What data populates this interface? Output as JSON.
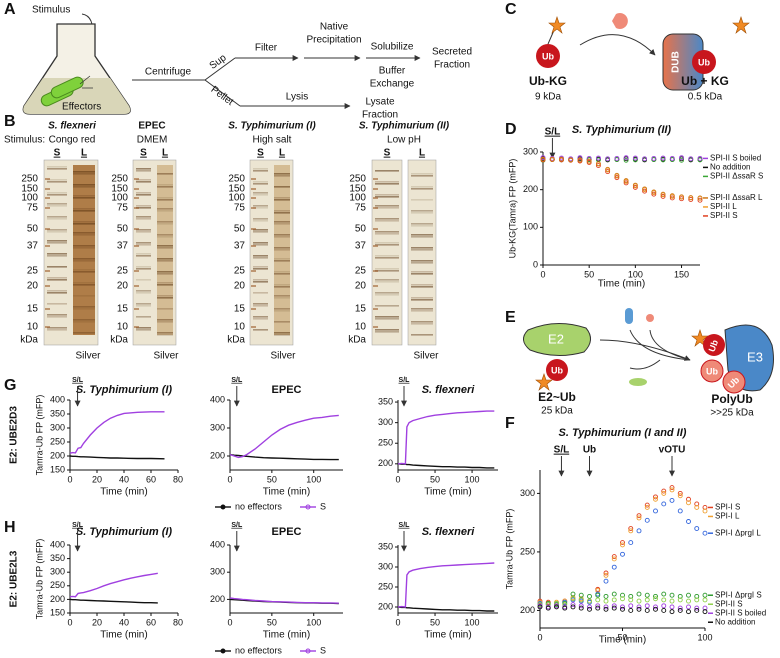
{
  "panel_labels": {
    "d": "D",
    "f": "F",
    "g": "G",
    "h": "H"
  },
  "panel_a": {
    "label": "A",
    "stimulus": "Stimulus",
    "effectors": "Effectors",
    "centrifuge": "Centrifuge",
    "sup": "Sup",
    "pellet": "Pellet",
    "filter": "Filter",
    "native_precipitation": [
      "Native",
      "Precipitation"
    ],
    "solubilize": "Solubilize",
    "buffer_exchange": [
      "Buffer",
      "Exchange"
    ],
    "secreted_fraction": [
      "Secreted",
      "Fraction"
    ],
    "lysis": "Lysis",
    "lysate_fraction": [
      "Lysate",
      "Fraction"
    ]
  },
  "panel_b": {
    "label": "B",
    "stimulus_label": "Stimulus:",
    "gels": [
      {
        "organism": "S. flexneri",
        "stimulus": "Congo red",
        "lanes": [
          "S",
          "L"
        ],
        "markers": [
          250,
          150,
          100,
          75,
          50,
          37,
          25,
          20,
          15,
          10
        ],
        "unit": "kDa",
        "stain": "Silver"
      },
      {
        "organism": "EPEC",
        "stimulus": "DMEM",
        "lanes": [
          "S",
          "L"
        ],
        "markers": [
          250,
          150,
          100,
          75,
          50,
          37,
          25,
          20,
          15,
          10
        ],
        "unit": "kDa",
        "stain": "Silver"
      },
      {
        "organism": "S. Typhimurium (I)",
        "stimulus": "High salt",
        "lanes": [
          "S",
          "L"
        ],
        "markers": [
          250,
          150,
          100,
          75,
          50,
          37,
          25,
          20,
          15,
          10
        ],
        "unit": "kDa",
        "stain": "Silver"
      },
      {
        "organism": "S. Typhimurium (II)",
        "stimulus": "Low pH",
        "lanes": [
          "S",
          "L"
        ],
        "markers": [
          250,
          150,
          100,
          75,
          50,
          37,
          25,
          20,
          15,
          10
        ],
        "unit": "kDa",
        "stain": "Silver"
      }
    ]
  },
  "panel_c": {
    "label": "C",
    "ub_labels": [
      "Ub",
      "Ub"
    ],
    "enzyme": "DUB",
    "substrate": "Ub-KG",
    "substrate_size": "9 kDa",
    "product": "Ub + KG",
    "product_size": "0.5 kDa"
  },
  "panel_e": {
    "label": "E",
    "e2": "E2",
    "e3": "E3",
    "ub_labels": [
      "Ub",
      "Ub",
      "Ub",
      "Ub"
    ],
    "conjugate": "E2~Ub",
    "conjugate_size": "25 kDa",
    "product": "PolyUb",
    "product_size": ">>25 kDa"
  },
  "chart_data": [
    {
      "type": "scatter",
      "title": "S. Typhimurium (II)",
      "xlabel": "Time (min)",
      "ylabel": "Ub-KG(Tamra) FP (mFP)",
      "x": [
        0,
        10,
        20,
        30,
        40,
        50,
        60,
        70,
        80,
        90,
        100,
        110,
        120,
        130,
        140,
        150,
        160,
        170
      ],
      "xlim": [
        0,
        170
      ],
      "xticks": [
        0,
        50,
        100,
        150
      ],
      "ylim": [
        0,
        300
      ],
      "yticks": [
        0,
        100,
        200,
        300
      ],
      "annotations": [
        "S/L"
      ],
      "legend": "right",
      "series": [
        {
          "name": "No addition",
          "color": "#111111",
          "values": [
            282,
            280,
            281,
            279,
            282,
            280,
            281,
            279,
            280,
            282,
            281,
            279,
            280,
            281,
            280,
            282,
            279,
            280
          ]
        },
        {
          "name": "SPI-II ΔssaR S",
          "color": "#3aa635",
          "values": [
            278,
            280,
            279,
            281,
            278,
            280,
            279,
            281,
            280,
            278,
            279,
            281,
            280,
            279,
            280,
            278,
            281,
            279
          ]
        },
        {
          "name": "SPI-II S boiled",
          "color": "#a040e0",
          "values": [
            285,
            283,
            284,
            282,
            285,
            283,
            284,
            282,
            283,
            285,
            284,
            282,
            283,
            284,
            283,
            285,
            282,
            283
          ]
        },
        {
          "name": "SPI-II L",
          "color": "#f0a030",
          "values": [
            280,
            281,
            280,
            279,
            278,
            275,
            268,
            252,
            236,
            222,
            210,
            200,
            192,
            186,
            182,
            180,
            178,
            177
          ]
        },
        {
          "name": "SPI-II S",
          "color": "#e04020",
          "values": [
            279,
            280,
            279,
            278,
            276,
            272,
            264,
            248,
            232,
            218,
            206,
            196,
            188,
            182,
            178,
            176,
            174,
            172
          ]
        },
        {
          "name": "SPI-II ΔssaR L",
          "color": "#d07818",
          "values": [
            281,
            280,
            281,
            279,
            279,
            276,
            269,
            254,
            238,
            224,
            212,
            202,
            194,
            188,
            184,
            181,
            179,
            178
          ]
        }
      ]
    },
    {
      "type": "scatter",
      "title": "S. Typhimurium (I and II)",
      "xlabel": "Time (min)",
      "ylabel": "Tamra-Ub FP (mFP)",
      "x": [
        0,
        5,
        10,
        15,
        20,
        25,
        30,
        35,
        40,
        45,
        50,
        55,
        60,
        65,
        70,
        75,
        80,
        85,
        90,
        95,
        100
      ],
      "xlim": [
        0,
        100
      ],
      "xticks": [
        0,
        50,
        100
      ],
      "ylim": [
        185,
        320
      ],
      "yticks": [
        200,
        250,
        300
      ],
      "annotations": [
        "S/L",
        "Ub",
        "vOTU"
      ],
      "legend": "right",
      "series": [
        {
          "name": "SPI-I S",
          "color": "#e04020",
          "values": [
            208,
            207,
            206,
            208,
            210,
            209,
            208,
            218,
            232,
            246,
            258,
            270,
            281,
            290,
            297,
            302,
            305,
            300,
            295,
            291,
            288
          ]
        },
        {
          "name": "SPI-I L",
          "color": "#f0a030",
          "values": [
            207,
            206,
            207,
            208,
            211,
            210,
            208,
            217,
            230,
            244,
            256,
            268,
            279,
            288,
            295,
            300,
            303,
            298,
            292,
            288,
            285
          ]
        },
        {
          "name": "SPI-I ΔprgI L",
          "color": "#3366dd",
          "values": [
            206,
            205,
            206,
            207,
            209,
            208,
            207,
            214,
            225,
            237,
            248,
            258,
            268,
            277,
            285,
            291,
            294,
            285,
            276,
            270,
            266
          ]
        },
        {
          "name": "SPI-I ΔprgI S",
          "color": "#2e9a2e",
          "values": [
            205,
            206,
            205,
            206,
            214,
            213,
            212,
            213,
            212,
            214,
            213,
            212,
            214,
            213,
            212,
            214,
            213,
            212,
            213,
            212,
            213
          ]
        },
        {
          "name": "SPI-II S",
          "color": "#8fd04a",
          "values": [
            205,
            205,
            206,
            205,
            210,
            209,
            208,
            209,
            208,
            209,
            210,
            209,
            208,
            209,
            210,
            209,
            208,
            209,
            208,
            209,
            209
          ]
        },
        {
          "name": "SPI-II S boiled",
          "color": "#a040e0",
          "values": [
            204,
            203,
            204,
            203,
            205,
            204,
            203,
            204,
            203,
            204,
            203,
            204,
            203,
            204,
            203,
            204,
            203,
            202,
            203,
            202,
            202
          ]
        },
        {
          "name": "No addition",
          "color": "#111111",
          "values": [
            203,
            202,
            203,
            202,
            203,
            202,
            201,
            202,
            201,
            202,
            201,
            200,
            201,
            200,
            201,
            200,
            199,
            200,
            199,
            200,
            199
          ]
        }
      ]
    },
    {
      "type": "line",
      "title": "S. Typhimurium (I)",
      "xlabel": "Time (min)",
      "ylabel": "Tamra-Ub FP (mFP)",
      "side_label": "E2: UBE2D3",
      "x": [
        0,
        2,
        4,
        6,
        8,
        10,
        15,
        20,
        25,
        30,
        35,
        40,
        50,
        60,
        70
      ],
      "xlim": [
        0,
        80
      ],
      "xticks": [
        0,
        20,
        40,
        60,
        80
      ],
      "ylim": [
        150,
        400
      ],
      "yticks": [
        150,
        200,
        250,
        300,
        350,
        400
      ],
      "annotations": [
        "S/L"
      ],
      "series": [
        {
          "color": "#111111",
          "values": [
            200,
            199,
            199,
            198,
            197,
            197,
            196,
            195,
            194,
            193,
            193,
            192,
            191,
            191,
            190
          ]
        },
        {
          "color": "#a040e0",
          "values": [
            210,
            212,
            211,
            228,
            230,
            245,
            275,
            300,
            320,
            335,
            345,
            352,
            356,
            358,
            358
          ]
        }
      ]
    },
    {
      "type": "line",
      "title": "EPEC",
      "xlabel": "Time (min)",
      "x": [
        0,
        5,
        10,
        15,
        20,
        30,
        40,
        50,
        60,
        70,
        80,
        90,
        100,
        110,
        120,
        130
      ],
      "xlim": [
        0,
        135
      ],
      "xticks": [
        0,
        50,
        100
      ],
      "ylim": [
        150,
        400
      ],
      "yticks": [
        200,
        300,
        400
      ],
      "annotations": [
        "S/L"
      ],
      "legend": "below",
      "series": [
        {
          "name": "no effectors",
          "color": "#111111",
          "values": [
            205,
            203,
            202,
            200,
            199,
            196,
            194,
            193,
            192,
            191,
            190,
            189,
            188,
            188,
            187,
            187
          ]
        },
        {
          "name": "S",
          "color": "#a040e0",
          "values": [
            205,
            200,
            195,
            198,
            205,
            225,
            250,
            275,
            295,
            310,
            320,
            328,
            335,
            338,
            342,
            345
          ]
        }
      ]
    },
    {
      "type": "line",
      "title": "S. flexneri",
      "xlabel": "Time (min)",
      "x": [
        0,
        5,
        10,
        12,
        15,
        20,
        30,
        40,
        50,
        60,
        70,
        80,
        90,
        100,
        110,
        120,
        130
      ],
      "xlim": [
        0,
        135
      ],
      "xticks": [
        0,
        50,
        100
      ],
      "ylim": [
        185,
        355
      ],
      "yticks": [
        200,
        250,
        300,
        350
      ],
      "annotations": [
        "S/L"
      ],
      "series": [
        {
          "color": "#111111",
          "values": [
            200,
            199,
            199,
            198,
            198,
            197,
            196,
            195,
            194,
            193,
            193,
            192,
            192,
            191,
            191,
            190,
            190
          ]
        },
        {
          "color": "#a040e0",
          "values": [
            200,
            201,
            200,
            290,
            300,
            305,
            310,
            315,
            318,
            320,
            322,
            324,
            325,
            326,
            327,
            328,
            328
          ]
        }
      ]
    },
    {
      "type": "line",
      "title": "S. Typhimurium (I)",
      "xlabel": "Time (min)",
      "ylabel": "Tamra-Ub FP (mFP)",
      "side_label": "E2: UBE2L3",
      "x": [
        0,
        2,
        4,
        6,
        8,
        10,
        15,
        20,
        25,
        30,
        35,
        40,
        45,
        50,
        55,
        60,
        65
      ],
      "xlim": [
        0,
        80
      ],
      "xticks": [
        0,
        20,
        40,
        60,
        80
      ],
      "ylim": [
        150,
        400
      ],
      "yticks": [
        150,
        200,
        250,
        300,
        350,
        400
      ],
      "annotations": [
        "S/L"
      ],
      "series": [
        {
          "color": "#111111",
          "values": [
            200,
            199,
            199,
            198,
            197,
            197,
            196,
            195,
            194,
            193,
            192,
            191,
            190,
            189,
            188,
            188,
            187
          ]
        },
        {
          "color": "#a040e0",
          "values": [
            210,
            211,
            210,
            222,
            224,
            225,
            232,
            240,
            250,
            258,
            265,
            272,
            278,
            283,
            288,
            292,
            296
          ]
        }
      ]
    },
    {
      "type": "line",
      "title": "EPEC",
      "xlabel": "Time (min)",
      "x": [
        0,
        5,
        10,
        15,
        20,
        30,
        40,
        50,
        60,
        70,
        80,
        90,
        100,
        110,
        120,
        130
      ],
      "xlim": [
        0,
        135
      ],
      "xticks": [
        0,
        50,
        100
      ],
      "ylim": [
        150,
        400
      ],
      "yticks": [
        200,
        300,
        400
      ],
      "annotations": [
        "S/L"
      ],
      "legend": "below",
      "series": [
        {
          "name": "no effectors",
          "color": "#111111",
          "values": [
            200,
            199,
            198,
            197,
            196,
            194,
            192,
            191,
            190,
            189,
            188,
            187,
            187,
            186,
            186,
            185
          ]
        },
        {
          "name": "S",
          "color": "#a040e0",
          "values": [
            205,
            203,
            202,
            200,
            199,
            196,
            194,
            192,
            191,
            190,
            189,
            188,
            188,
            187,
            187,
            186
          ]
        }
      ]
    },
    {
      "type": "line",
      "title": "S. flexneri",
      "xlabel": "Time (min)",
      "x": [
        0,
        5,
        10,
        12,
        15,
        20,
        30,
        40,
        50,
        60,
        70,
        80,
        90,
        100,
        110,
        120,
        130
      ],
      "xlim": [
        0,
        135
      ],
      "xticks": [
        0,
        50,
        100
      ],
      "ylim": [
        185,
        355
      ],
      "yticks": [
        200,
        250,
        300,
        350
      ],
      "annotations": [
        "S/L"
      ],
      "series": [
        {
          "color": "#111111",
          "values": [
            200,
            199,
            199,
            198,
            198,
            197,
            196,
            195,
            194,
            193,
            193,
            192,
            192,
            191,
            191,
            190,
            190
          ]
        },
        {
          "color": "#a040e0",
          "values": [
            200,
            201,
            200,
            280,
            288,
            292,
            296,
            299,
            301,
            303,
            304,
            305,
            306,
            307,
            308,
            309,
            310
          ]
        }
      ]
    }
  ]
}
